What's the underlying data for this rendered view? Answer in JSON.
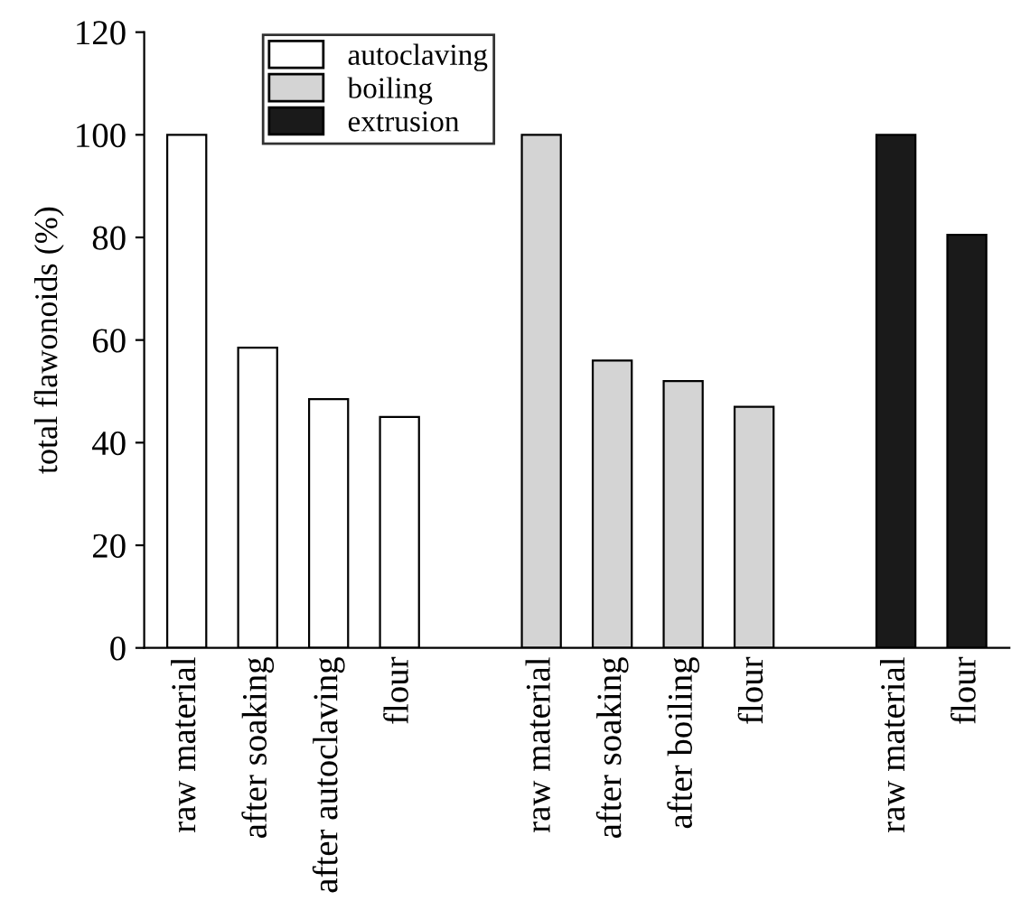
{
  "chart_data": {
    "type": "bar",
    "ylabel": "total flawonoids (%)",
    "categories": [
      "raw material",
      "after soaking",
      "after autoclaving",
      "flour",
      null,
      "raw material",
      "after soaking",
      "after boiling",
      "flour",
      null,
      "raw material",
      "flour"
    ],
    "series": [
      {
        "name": "autoclaving",
        "color": "#ffffff",
        "values": [
          100,
          58.5,
          48.5,
          45,
          null,
          null,
          null,
          null,
          null,
          null,
          null,
          null
        ]
      },
      {
        "name": "boiling",
        "color": "#d4d4d4",
        "values": [
          null,
          null,
          null,
          null,
          null,
          100,
          56,
          52,
          47,
          null,
          null,
          null
        ]
      },
      {
        "name": "extrusion",
        "color": "#1a1a1a",
        "values": [
          null,
          null,
          null,
          null,
          null,
          null,
          null,
          null,
          null,
          null,
          100,
          80.5
        ]
      }
    ],
    "ylim": [
      0,
      120
    ],
    "yticks": [
      0,
      20,
      40,
      60,
      80,
      100,
      120
    ],
    "legend": "top left",
    "grid": false
  }
}
